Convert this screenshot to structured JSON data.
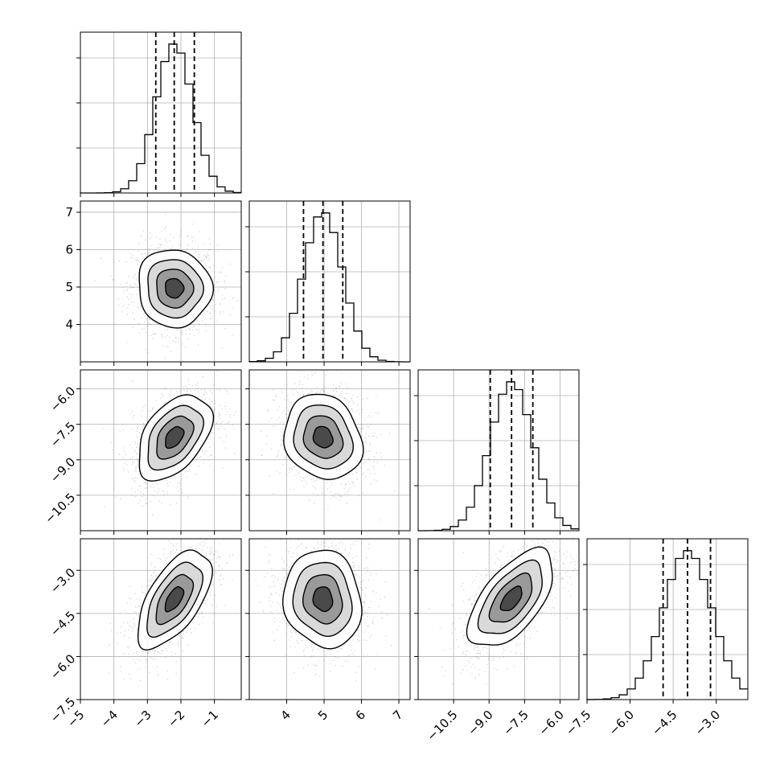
{
  "chart_data": {
    "type": "corner",
    "grid": true,
    "colors": {
      "line": "#000000",
      "grid": "#b0b0b0",
      "points": "#7a7a7a"
    },
    "variables": [
      {
        "mean": -2.2,
        "sd": 0.55,
        "range": [
          -5.0,
          -0.2
        ],
        "quantiles": [
          -2.75,
          -2.2,
          -1.6
        ],
        "ticks": [
          -5,
          -4,
          -3,
          -2,
          -1
        ],
        "tick_labels": [
          "−5",
          "−4",
          "−3",
          "−2",
          "−1"
        ]
      },
      {
        "mean": 4.97,
        "sd": 0.52,
        "range": [
          3.0,
          7.3
        ],
        "quantiles": [
          4.45,
          4.97,
          5.5
        ],
        "ticks": [
          4,
          5,
          6,
          7
        ],
        "tick_labels": [
          "4",
          "5",
          "6",
          "7"
        ]
      },
      {
        "mean": -8.05,
        "sd": 0.9,
        "range": [
          -12.0,
          -5.2
        ],
        "quantiles": [
          -8.95,
          -8.05,
          -7.15
        ],
        "ticks": [
          -10.5,
          -9.0,
          -7.5,
          -6.0
        ],
        "tick_labels": [
          "−10.5",
          "−9.0",
          "−7.5",
          "−6.0"
        ]
      },
      {
        "mean": -4.0,
        "sd": 0.85,
        "range": [
          -7.5,
          -1.9
        ],
        "quantiles": [
          -4.85,
          -4.0,
          -3.2
        ],
        "ticks": [
          -7.5,
          -6.0,
          -4.5,
          -3.0
        ],
        "tick_labels": [
          "−7.5",
          "−6.0",
          "−4.5",
          "−3.0"
        ]
      }
    ],
    "correlations": [
      [
        1.0,
        -0.05,
        0.45,
        0.6
      ],
      [
        -0.05,
        1.0,
        -0.15,
        -0.1
      ],
      [
        0.45,
        -0.15,
        1.0,
        0.6
      ],
      [
        0.6,
        -0.1,
        0.6,
        1.0
      ]
    ],
    "histogram_bins": 20,
    "contour_levels_sigma": [
      0.5,
      1.0,
      1.5,
      2.0
    ]
  }
}
